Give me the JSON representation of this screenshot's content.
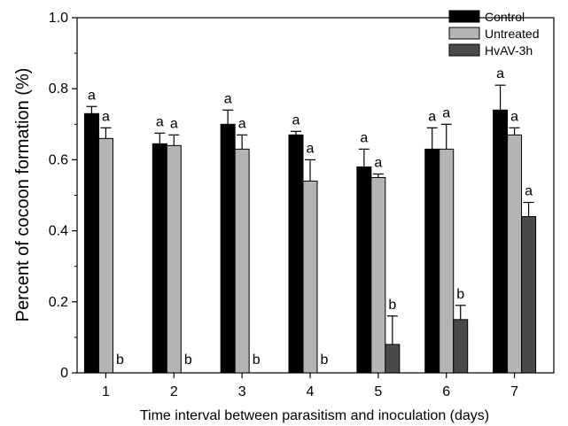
{
  "chart_data": {
    "type": "bar",
    "categories": [
      "1",
      "2",
      "3",
      "4",
      "5",
      "6",
      "7"
    ],
    "xlabel": "Time interval between parasitism and inoculation (days)",
    "ylabel": "Percent of cocoon formation (%)",
    "ylim": [
      0,
      1.0
    ],
    "yticks": [
      "0",
      "0.2",
      "0.4",
      "0.6",
      "0.8",
      "1.0"
    ],
    "legend_position": "top-right",
    "series": [
      {
        "name": "Control",
        "color": "#000000",
        "values": [
          0.73,
          0.645,
          0.7,
          0.67,
          0.58,
          0.63,
          0.74
        ],
        "errors": [
          0.02,
          0.03,
          0.04,
          0.01,
          0.05,
          0.06,
          0.07
        ],
        "significance": [
          "a",
          "a",
          "a",
          "a",
          "a",
          "a",
          "a"
        ]
      },
      {
        "name": "Untreated",
        "color": "#b4b4b4",
        "values": [
          0.66,
          0.64,
          0.63,
          0.54,
          0.55,
          0.63,
          0.67
        ],
        "errors": [
          0.03,
          0.03,
          0.04,
          0.06,
          0.01,
          0.07,
          0.02
        ],
        "significance": [
          "a",
          "a",
          "a",
          "a",
          "a",
          "a",
          "a"
        ]
      },
      {
        "name": "HvAV-3h",
        "color": "#4a4a4a",
        "values": [
          0,
          0,
          0,
          0,
          0.08,
          0.15,
          0.44
        ],
        "errors": [
          0,
          0,
          0,
          0,
          0.08,
          0.04,
          0.04
        ],
        "significance": [
          "b",
          "b",
          "b",
          "b",
          "b",
          "b",
          "a"
        ]
      }
    ]
  }
}
